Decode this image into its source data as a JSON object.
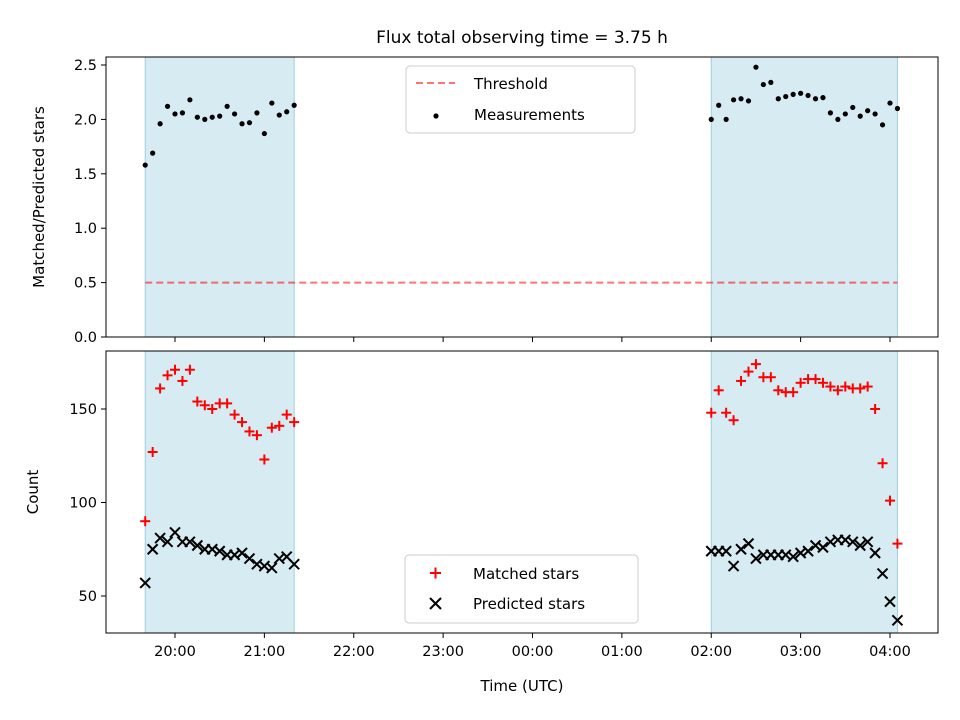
{
  "title": "Flux total observing time = 3.75 h",
  "x_tick_labels": [
    "20:00",
    "21:00",
    "22:00",
    "23:00",
    "00:00",
    "01:00",
    "02:00",
    "03:00",
    "04:00"
  ],
  "xlabel": "Time (UTC)",
  "colors": {
    "span": "#add8e6",
    "threshold": "#ff0000",
    "measurements": "#000000",
    "matched": "#ff0000",
    "predicted": "#000000"
  },
  "chart_data": [
    {
      "type": "scatter",
      "ylabel": "Matched/Predicted stars",
      "ylim": [
        0,
        2.6
      ],
      "y_ticks": [
        "0.0",
        "0.5",
        "1.0",
        "1.5",
        "2.0",
        "2.5"
      ],
      "shaded_spans": [
        [
          "19:40",
          "21:20"
        ],
        [
          "02:00",
          "04:05"
        ]
      ],
      "threshold": {
        "name": "Threshold",
        "value": 0.5
      },
      "legend_position": "top-center",
      "series": [
        {
          "name": "Measurements",
          "x": [
            "19:40",
            "19:45",
            "19:50",
            "19:55",
            "20:00",
            "20:05",
            "20:10",
            "20:15",
            "20:20",
            "20:25",
            "20:30",
            "20:35",
            "20:40",
            "20:45",
            "20:50",
            "20:55",
            "21:00",
            "21:05",
            "21:10",
            "21:15",
            "21:20",
            "02:00",
            "02:05",
            "02:10",
            "02:15",
            "02:20",
            "02:25",
            "02:30",
            "02:35",
            "02:40",
            "02:45",
            "02:50",
            "02:55",
            "03:00",
            "03:05",
            "03:10",
            "03:15",
            "03:20",
            "03:25",
            "03:30",
            "03:35",
            "03:40",
            "03:45",
            "03:50",
            "03:55",
            "04:00",
            "04:05"
          ],
          "y": [
            1.58,
            1.69,
            1.96,
            2.12,
            2.05,
            2.06,
            2.18,
            2.02,
            2.0,
            2.02,
            2.03,
            2.12,
            2.05,
            1.96,
            1.97,
            2.06,
            1.87,
            2.15,
            2.04,
            2.07,
            2.13,
            2.0,
            2.13,
            2.0,
            2.18,
            2.19,
            2.17,
            2.48,
            2.32,
            2.34,
            2.19,
            2.21,
            2.23,
            2.24,
            2.22,
            2.19,
            2.2,
            2.06,
            2.0,
            2.05,
            2.11,
            2.03,
            2.08,
            2.05,
            1.95,
            2.15,
            2.1
          ]
        }
      ]
    },
    {
      "type": "scatter",
      "ylabel": "Count",
      "ylim": [
        30,
        180
      ],
      "y_ticks": [
        "50",
        "100",
        "150"
      ],
      "shaded_spans": [
        [
          "19:40",
          "21:20"
        ],
        [
          "02:00",
          "04:05"
        ]
      ],
      "legend_position": "bottom-center",
      "series": [
        {
          "name": "Matched stars",
          "x": [
            "19:40",
            "19:45",
            "19:50",
            "19:55",
            "20:00",
            "20:05",
            "20:10",
            "20:15",
            "20:20",
            "20:25",
            "20:30",
            "20:35",
            "20:40",
            "20:45",
            "20:50",
            "20:55",
            "21:00",
            "21:05",
            "21:10",
            "21:15",
            "21:20",
            "02:00",
            "02:05",
            "02:10",
            "02:15",
            "02:20",
            "02:25",
            "02:30",
            "02:35",
            "02:40",
            "02:45",
            "02:50",
            "02:55",
            "03:00",
            "03:05",
            "03:10",
            "03:15",
            "03:20",
            "03:25",
            "03:30",
            "03:35",
            "03:40",
            "03:45",
            "03:50",
            "03:55",
            "04:00",
            "04:05"
          ],
          "y": [
            90,
            127,
            161,
            168,
            171,
            165,
            171,
            154,
            152,
            150,
            153,
            153,
            147,
            143,
            138,
            136,
            123,
            140,
            141,
            147,
            143,
            148,
            160,
            148,
            144,
            165,
            170,
            174,
            167,
            167,
            160,
            159,
            159,
            164,
            166,
            166,
            164,
            162,
            160,
            162,
            161,
            161,
            162,
            150,
            121,
            101,
            78
          ]
        },
        {
          "name": "Predicted stars",
          "x": [
            "19:40",
            "19:45",
            "19:50",
            "19:55",
            "20:00",
            "20:05",
            "20:10",
            "20:15",
            "20:20",
            "20:25",
            "20:30",
            "20:35",
            "20:40",
            "20:45",
            "20:50",
            "20:55",
            "21:00",
            "21:05",
            "21:10",
            "21:15",
            "21:20",
            "02:00",
            "02:05",
            "02:10",
            "02:15",
            "02:20",
            "02:25",
            "02:30",
            "02:35",
            "02:40",
            "02:45",
            "02:50",
            "02:55",
            "03:00",
            "03:05",
            "03:10",
            "03:15",
            "03:20",
            "03:25",
            "03:30",
            "03:35",
            "03:40",
            "03:45",
            "03:50",
            "03:55",
            "04:00",
            "04:05"
          ],
          "y": [
            57,
            75,
            81,
            79,
            84,
            79,
            79,
            77,
            75,
            75,
            74,
            72,
            72,
            73,
            70,
            67,
            66,
            65,
            70,
            71,
            67,
            74,
            74,
            74,
            66,
            75,
            78,
            70,
            72,
            72,
            72,
            72,
            71,
            73,
            74,
            77,
            76,
            79,
            80,
            80,
            79,
            77,
            79,
            73,
            62,
            47,
            37
          ]
        }
      ]
    }
  ]
}
